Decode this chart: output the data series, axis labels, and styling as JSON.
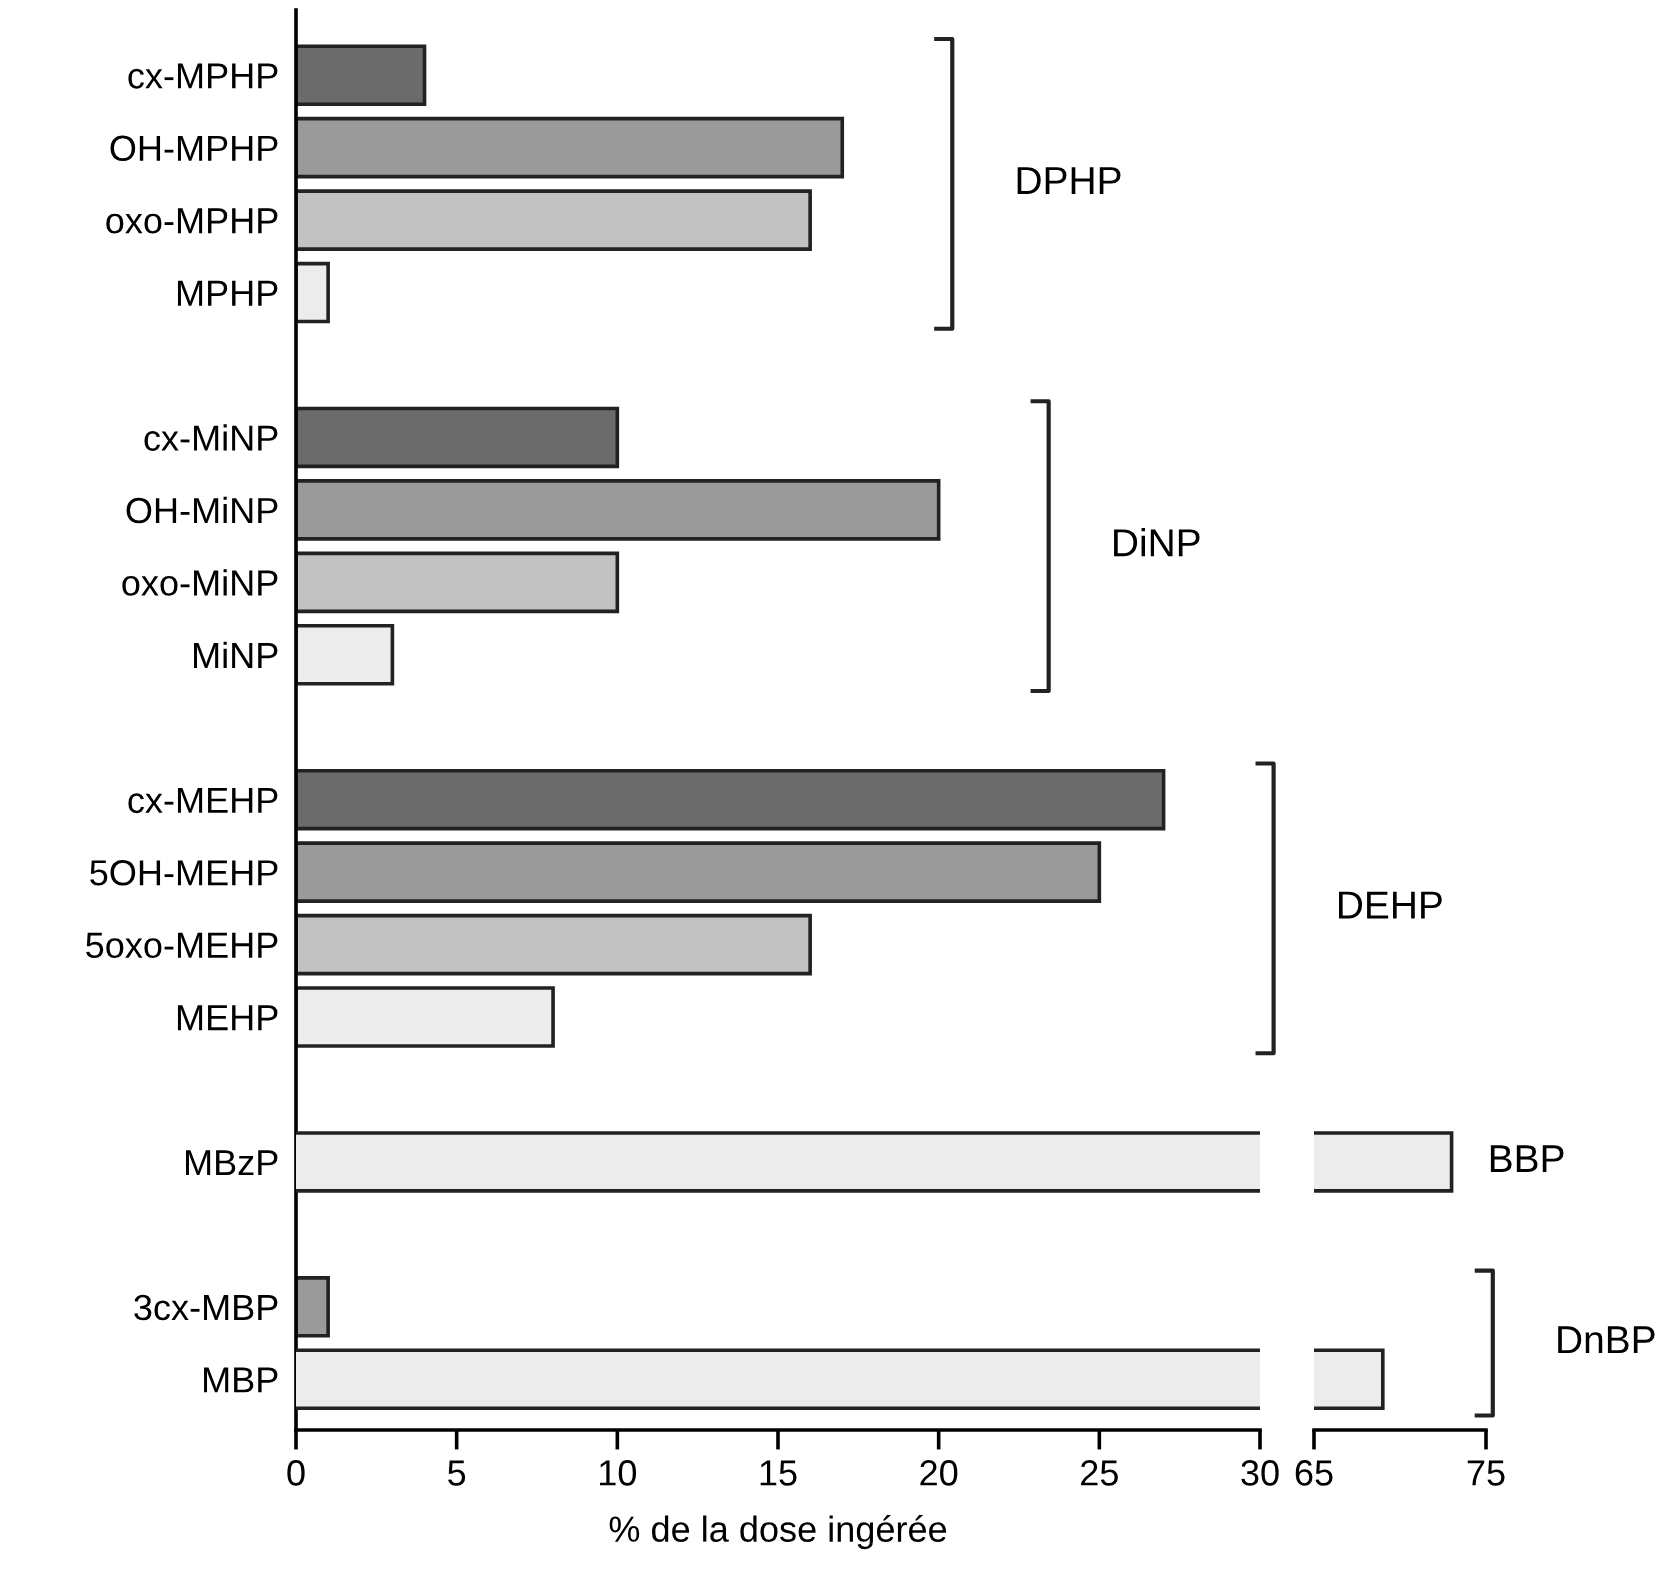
{
  "chart_data": [
    {
      "type": "bar",
      "orientation": "horizontal",
      "xlabel": "% de la dose ingérée",
      "categories": [
        "cx-MPHP",
        "OH-MPHP",
        "oxo-MPHP",
        "MPHP",
        null,
        "cx-MiNP",
        "OH-MiNP",
        "oxo-MiNP",
        "MiNP",
        null,
        "cx-MEHP",
        "5OH-MEHP",
        "5oxo-MEHP",
        "MEHP",
        null,
        "MBzP",
        null,
        "3cx-MBP",
        "MBP"
      ],
      "values": [
        4,
        17,
        16,
        1,
        null,
        10,
        20,
        10,
        3,
        null,
        27,
        25,
        16,
        8,
        null,
        null,
        null,
        1,
        null
      ],
      "colors": [
        "#6b6b6b",
        "#9a9a9a",
        "#c2c2c2",
        "#ececec",
        null,
        "#6b6b6b",
        "#9a9a9a",
        "#c2c2c2",
        "#ececec",
        null,
        "#6b6b6b",
        "#9a9a9a",
        "#c2c2c2",
        "#ececec",
        null,
        null,
        null,
        "#9a9a9a",
        null
      ],
      "xlim": [
        0,
        30
      ],
      "xticks": [
        0,
        5,
        10,
        15,
        20,
        25,
        30
      ],
      "annotations": [
        "DPHP",
        "DiNP",
        "DEHP",
        "BBP",
        "DnBP"
      ]
    },
    {
      "type": "bar",
      "orientation": "horizontal",
      "tick_labels": "x",
      "values": [
        null,
        null,
        null,
        null,
        null,
        null,
        null,
        null,
        null,
        null,
        null,
        null,
        null,
        null,
        null,
        73,
        null,
        null,
        69
      ],
      "colors": [
        null,
        null,
        null,
        null,
        null,
        null,
        null,
        null,
        null,
        null,
        null,
        null,
        null,
        null,
        null,
        "#ececec",
        null,
        null,
        "#ececec"
      ],
      "xlim": [
        65,
        75
      ],
      "xticks": [
        65,
        75
      ]
    }
  ]
}
